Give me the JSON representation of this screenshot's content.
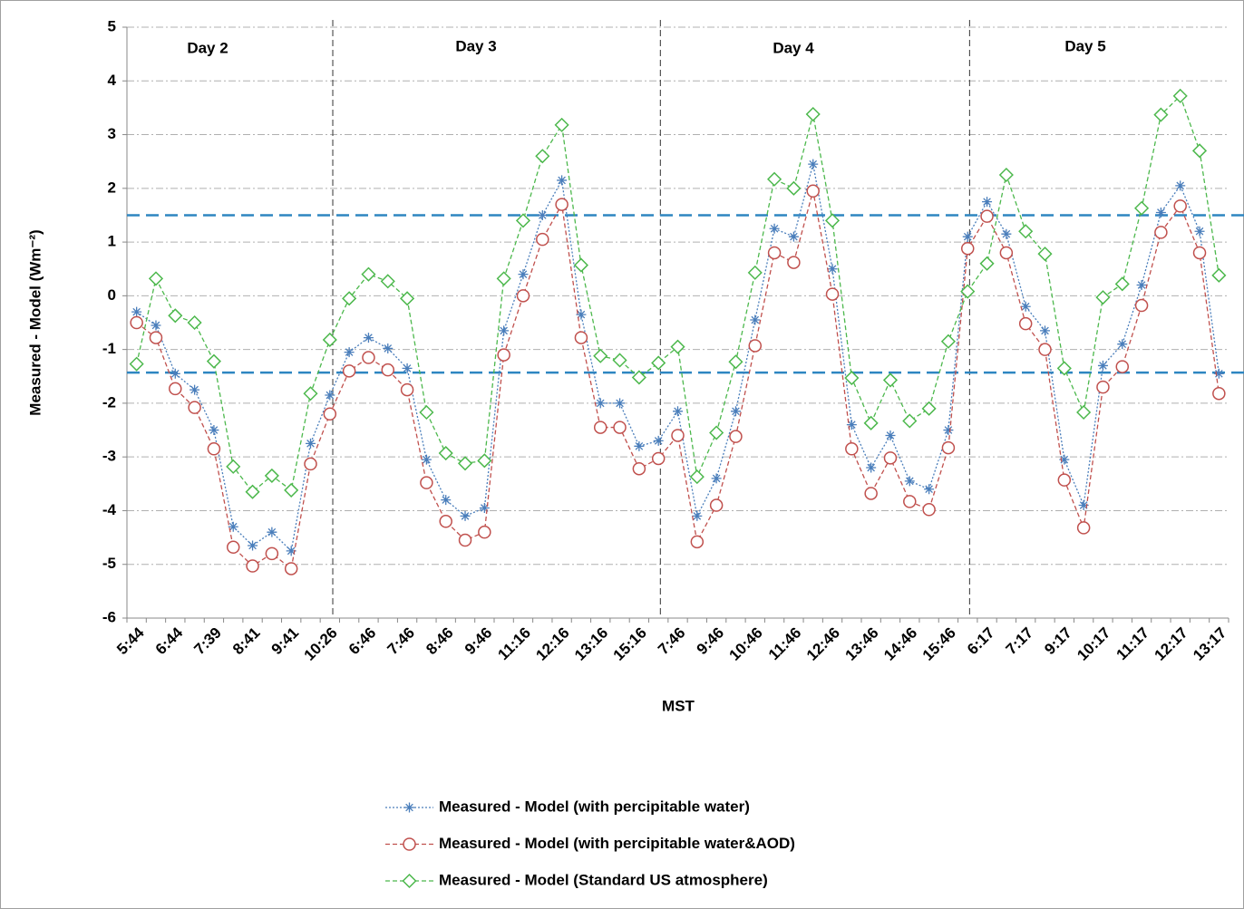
{
  "chart_data": {
    "type": "line",
    "ylabel": "Measured - Model (Wm⁻²)",
    "xlabel": "MST",
    "annotations": [
      "Day 2",
      "Day 3",
      "Day 4",
      "Day 5"
    ],
    "categories": [
      "5:44",
      null,
      "6:44",
      null,
      "7:39",
      null,
      "8:41",
      null,
      "9:41",
      null,
      "10:26",
      null,
      "6:46",
      null,
      "7:46",
      null,
      "8:46",
      null,
      "9:46",
      null,
      "11:16",
      null,
      "12:16",
      null,
      "13:16",
      null,
      "15:16",
      null,
      "7:46",
      null,
      "9:46",
      null,
      "10:46",
      null,
      "11:46",
      null,
      "12:46",
      null,
      "13:46",
      null,
      "14:46",
      null,
      "15:46",
      null,
      "6:17",
      null,
      "7:17",
      null,
      "9:17",
      null,
      "10:17",
      null,
      "11:17",
      null,
      "12:17",
      null,
      "13:17"
    ],
    "series": [
      {
        "name": "Measured - Model (with percipitable water)",
        "color": "#4a7ebb",
        "marker": "star",
        "values": [
          -0.3,
          -0.55,
          -1.45,
          -1.75,
          -2.5,
          -4.3,
          -4.65,
          -4.4,
          -4.75,
          -2.75,
          -1.85,
          -1.05,
          -0.78,
          -0.98,
          -1.35,
          -3.05,
          -3.8,
          -4.1,
          -3.95,
          -0.65,
          0.4,
          1.5,
          2.15,
          -0.35,
          -2.0,
          -2.0,
          -2.8,
          -2.7,
          -2.15,
          -4.1,
          -3.4,
          -2.15,
          -0.45,
          1.25,
          1.1,
          2.45,
          0.5,
          -2.4,
          -3.2,
          -2.6,
          -3.45,
          -3.6,
          -2.5,
          1.1,
          1.75,
          1.15,
          -0.2,
          -0.65,
          -3.05,
          -3.9,
          -1.3,
          -0.9,
          0.2,
          1.55,
          2.05,
          1.2,
          -1.45
        ]
      },
      {
        "name": "Measured - Model (with percipitable water&AOD)",
        "color": "#c0504d",
        "marker": "circle",
        "values": [
          -0.5,
          -0.78,
          -1.73,
          -2.08,
          -2.85,
          -4.68,
          -5.03,
          -4.8,
          -5.08,
          -3.13,
          -2.2,
          -1.4,
          -1.15,
          -1.38,
          -1.75,
          -3.48,
          -4.2,
          -4.55,
          -4.4,
          -1.1,
          0.0,
          1.05,
          1.7,
          -0.78,
          -2.45,
          -2.45,
          -3.22,
          -3.03,
          -2.6,
          -4.58,
          -3.9,
          -2.62,
          -0.93,
          0.8,
          0.62,
          1.95,
          0.03,
          -2.85,
          -3.68,
          -3.02,
          -3.83,
          -3.98,
          -2.83,
          0.88,
          1.48,
          0.8,
          -0.52,
          -1.0,
          -3.43,
          -4.32,
          -1.7,
          -1.32,
          -0.18,
          1.18,
          1.67,
          0.8,
          -1.82
        ]
      },
      {
        "name": "Measured - Model (Standard US atmosphere)",
        "color": "#4cb84c",
        "marker": "diamond",
        "values": [
          -1.27,
          0.32,
          -0.37,
          -0.5,
          -1.22,
          -3.18,
          -3.65,
          -3.35,
          -3.62,
          -1.82,
          -0.82,
          -0.05,
          0.4,
          0.27,
          -0.05,
          -2.17,
          -2.93,
          -3.12,
          -3.07,
          0.32,
          1.4,
          2.6,
          3.18,
          0.57,
          -1.12,
          -1.2,
          -1.52,
          -1.25,
          -0.95,
          -3.37,
          -2.55,
          -1.23,
          0.43,
          2.17,
          2.0,
          3.38,
          1.4,
          -1.53,
          -2.37,
          -1.57,
          -2.33,
          -2.1,
          -0.85,
          0.08,
          0.6,
          2.25,
          1.2,
          0.78,
          -1.35,
          -2.17,
          -0.03,
          0.22,
          1.63,
          3.37,
          3.72,
          2.7,
          0.38
        ]
      }
    ],
    "reference_lines": [
      1.5,
      -1.43
    ],
    "reference_color": "#2e86c1",
    "ylim": [
      -6,
      5
    ],
    "yticks": [
      -6,
      -5,
      -4,
      -3,
      -2,
      -1,
      0,
      1,
      2,
      3,
      4,
      5
    ],
    "grid": true,
    "legend": "bottom"
  }
}
